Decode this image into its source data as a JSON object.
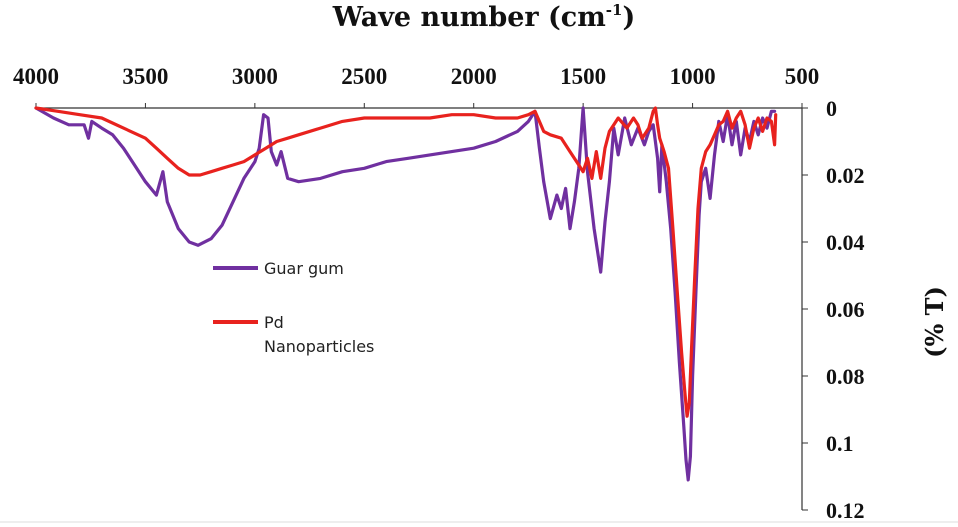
{
  "chart_data": {
    "type": "line",
    "title": "",
    "xlabel": "Wave number (cm",
    "xlabel_sup": "-1",
    "xlabel_end": ")",
    "ylabel": "(% T)",
    "xlim": [
      4000,
      500
    ],
    "ylim": [
      0,
      0.12
    ],
    "x_reversed": true,
    "y_inverted": true,
    "x_ticks": [
      "4000",
      "3500",
      "3000",
      "2500",
      "2000",
      "1500",
      "1000",
      "500"
    ],
    "x_tick_values": [
      4000,
      3500,
      3000,
      2500,
      2000,
      1500,
      1000,
      500
    ],
    "y_ticks": [
      "0",
      "0.02",
      "0.04",
      "0.06",
      "0.08",
      "0.1",
      "0.12"
    ],
    "y_tick_values": [
      0,
      0.02,
      0.04,
      0.06,
      0.08,
      0.1,
      0.12
    ],
    "grid": false,
    "legend_position": "center-left",
    "series": [
      {
        "name": "Guar gum",
        "color": "#7030a0",
        "points": [
          [
            4000,
            0.0
          ],
          [
            3920,
            0.003
          ],
          [
            3850,
            0.005
          ],
          [
            3780,
            0.005
          ],
          [
            3760,
            0.009
          ],
          [
            3745,
            0.004
          ],
          [
            3700,
            0.006
          ],
          [
            3650,
            0.008
          ],
          [
            3600,
            0.012
          ],
          [
            3550,
            0.017
          ],
          [
            3500,
            0.022
          ],
          [
            3450,
            0.026
          ],
          [
            3420,
            0.019
          ],
          [
            3400,
            0.028
          ],
          [
            3350,
            0.036
          ],
          [
            3300,
            0.04
          ],
          [
            3260,
            0.041
          ],
          [
            3200,
            0.039
          ],
          [
            3150,
            0.035
          ],
          [
            3100,
            0.028
          ],
          [
            3050,
            0.021
          ],
          [
            3000,
            0.016
          ],
          [
            2980,
            0.012
          ],
          [
            2960,
            0.002
          ],
          [
            2940,
            0.003
          ],
          [
            2925,
            0.013
          ],
          [
            2900,
            0.017
          ],
          [
            2880,
            0.013
          ],
          [
            2850,
            0.021
          ],
          [
            2800,
            0.022
          ],
          [
            2700,
            0.021
          ],
          [
            2600,
            0.019
          ],
          [
            2500,
            0.018
          ],
          [
            2400,
            0.016
          ],
          [
            2300,
            0.015
          ],
          [
            2200,
            0.014
          ],
          [
            2100,
            0.013
          ],
          [
            2000,
            0.012
          ],
          [
            1900,
            0.01
          ],
          [
            1800,
            0.007
          ],
          [
            1750,
            0.004
          ],
          [
            1720,
            0.001
          ],
          [
            1700,
            0.012
          ],
          [
            1680,
            0.022
          ],
          [
            1650,
            0.033
          ],
          [
            1620,
            0.026
          ],
          [
            1600,
            0.03
          ],
          [
            1580,
            0.024
          ],
          [
            1560,
            0.036
          ],
          [
            1540,
            0.028
          ],
          [
            1520,
            0.018
          ],
          [
            1500,
            0.0
          ],
          [
            1480,
            0.019
          ],
          [
            1450,
            0.036
          ],
          [
            1420,
            0.049
          ],
          [
            1400,
            0.034
          ],
          [
            1380,
            0.022
          ],
          [
            1360,
            0.006
          ],
          [
            1340,
            0.014
          ],
          [
            1310,
            0.003
          ],
          [
            1280,
            0.011
          ],
          [
            1250,
            0.006
          ],
          [
            1220,
            0.011
          ],
          [
            1200,
            0.007
          ],
          [
            1180,
            0.005
          ],
          [
            1160,
            0.015
          ],
          [
            1150,
            0.025
          ],
          [
            1140,
            0.011
          ],
          [
            1120,
            0.022
          ],
          [
            1100,
            0.036
          ],
          [
            1080,
            0.055
          ],
          [
            1060,
            0.076
          ],
          [
            1040,
            0.095
          ],
          [
            1030,
            0.105
          ],
          [
            1020,
            0.111
          ],
          [
            1010,
            0.104
          ],
          [
            1000,
            0.08
          ],
          [
            985,
            0.055
          ],
          [
            970,
            0.032
          ],
          [
            960,
            0.022
          ],
          [
            940,
            0.018
          ],
          [
            920,
            0.027
          ],
          [
            900,
            0.014
          ],
          [
            880,
            0.004
          ],
          [
            860,
            0.01
          ],
          [
            840,
            0.002
          ],
          [
            820,
            0.011
          ],
          [
            800,
            0.004
          ],
          [
            780,
            0.014
          ],
          [
            760,
            0.006
          ],
          [
            740,
            0.01
          ],
          [
            720,
            0.004
          ],
          [
            700,
            0.008
          ],
          [
            680,
            0.003
          ],
          [
            660,
            0.006
          ],
          [
            640,
            0.001
          ],
          [
            625,
            0.001
          ]
        ]
      },
      {
        "name": "Pd\nNanoparticles",
        "color": "#e8221e",
        "points": [
          [
            4000,
            0.0
          ],
          [
            3900,
            0.001
          ],
          [
            3800,
            0.002
          ],
          [
            3700,
            0.003
          ],
          [
            3600,
            0.006
          ],
          [
            3500,
            0.009
          ],
          [
            3450,
            0.012
          ],
          [
            3400,
            0.015
          ],
          [
            3350,
            0.018
          ],
          [
            3300,
            0.02
          ],
          [
            3250,
            0.02
          ],
          [
            3200,
            0.019
          ],
          [
            3150,
            0.018
          ],
          [
            3100,
            0.017
          ],
          [
            3050,
            0.016
          ],
          [
            3000,
            0.014
          ],
          [
            2950,
            0.012
          ],
          [
            2900,
            0.01
          ],
          [
            2850,
            0.009
          ],
          [
            2800,
            0.008
          ],
          [
            2700,
            0.006
          ],
          [
            2600,
            0.004
          ],
          [
            2500,
            0.003
          ],
          [
            2400,
            0.003
          ],
          [
            2300,
            0.003
          ],
          [
            2200,
            0.003
          ],
          [
            2100,
            0.002
          ],
          [
            2000,
            0.002
          ],
          [
            1900,
            0.003
          ],
          [
            1800,
            0.003
          ],
          [
            1750,
            0.002
          ],
          [
            1720,
            0.001
          ],
          [
            1700,
            0.004
          ],
          [
            1680,
            0.007
          ],
          [
            1650,
            0.008
          ],
          [
            1600,
            0.009
          ],
          [
            1560,
            0.013
          ],
          [
            1520,
            0.017
          ],
          [
            1500,
            0.019
          ],
          [
            1480,
            0.015
          ],
          [
            1460,
            0.021
          ],
          [
            1440,
            0.013
          ],
          [
            1420,
            0.021
          ],
          [
            1400,
            0.012
          ],
          [
            1380,
            0.007
          ],
          [
            1360,
            0.005
          ],
          [
            1340,
            0.003
          ],
          [
            1300,
            0.006
          ],
          [
            1270,
            0.003
          ],
          [
            1250,
            0.005
          ],
          [
            1230,
            0.009
          ],
          [
            1200,
            0.006
          ],
          [
            1180,
            0.001
          ],
          [
            1170,
            0.0
          ],
          [
            1160,
            0.005
          ],
          [
            1150,
            0.009
          ],
          [
            1130,
            0.013
          ],
          [
            1110,
            0.018
          ],
          [
            1090,
            0.036
          ],
          [
            1070,
            0.055
          ],
          [
            1050,
            0.073
          ],
          [
            1035,
            0.085
          ],
          [
            1025,
            0.092
          ],
          [
            1015,
            0.088
          ],
          [
            1005,
            0.072
          ],
          [
            990,
            0.05
          ],
          [
            975,
            0.03
          ],
          [
            960,
            0.018
          ],
          [
            940,
            0.013
          ],
          [
            920,
            0.011
          ],
          [
            900,
            0.008
          ],
          [
            880,
            0.005
          ],
          [
            860,
            0.004
          ],
          [
            840,
            0.001
          ],
          [
            820,
            0.006
          ],
          [
            800,
            0.003
          ],
          [
            780,
            0.001
          ],
          [
            760,
            0.005
          ],
          [
            740,
            0.012
          ],
          [
            720,
            0.006
          ],
          [
            700,
            0.003
          ],
          [
            680,
            0.007
          ],
          [
            660,
            0.003
          ],
          [
            640,
            0.004
          ],
          [
            625,
            0.011
          ],
          [
            620,
            0.002
          ]
        ]
      }
    ]
  }
}
